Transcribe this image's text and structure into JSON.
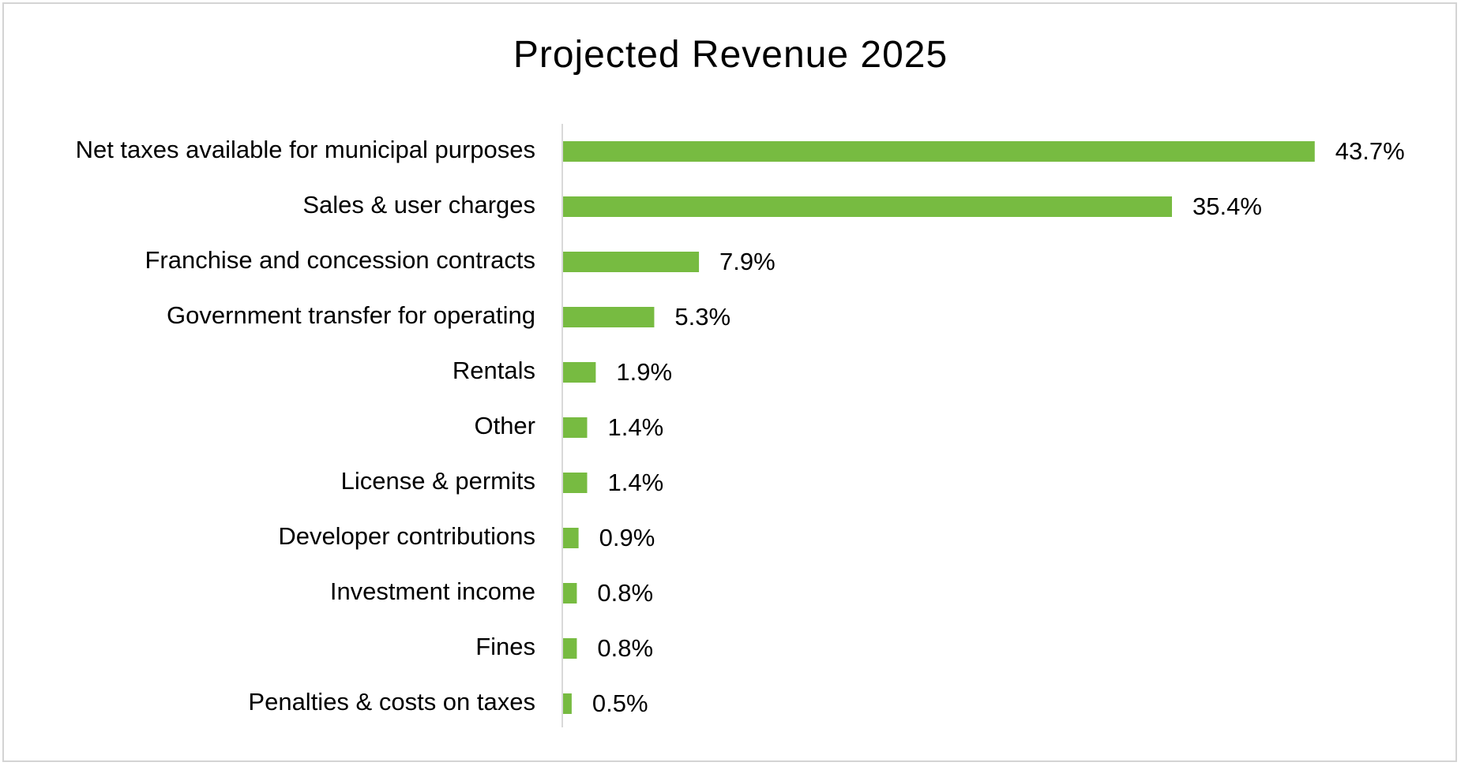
{
  "chart_data": {
    "type": "bar",
    "orientation": "horizontal",
    "title": "Projected Revenue 2025",
    "categories": [
      "Net taxes available for municipal purposes",
      "Sales & user charges",
      "Franchise and concession contracts",
      "Government transfer for operating",
      "Rentals",
      "Other",
      "License & permits",
      "Developer contributions",
      "Investment income",
      "Fines",
      "Penalties & costs on taxes"
    ],
    "values": [
      43.7,
      35.4,
      7.9,
      5.3,
      1.9,
      1.4,
      1.4,
      0.9,
      0.8,
      0.8,
      0.5
    ],
    "value_labels": [
      "43.7%",
      "35.4%",
      "7.9%",
      "5.3%",
      "1.9%",
      "1.4%",
      "1.4%",
      "0.9%",
      "0.8%",
      "0.8%",
      "0.5%"
    ],
    "xlim": [
      0,
      50
    ],
    "xlabel": "",
    "ylabel": "",
    "grid": false,
    "legend": "none",
    "bar_color": "#77bb41",
    "axis_color": "#d9d9d9",
    "border_color": "#d4d4d4"
  }
}
